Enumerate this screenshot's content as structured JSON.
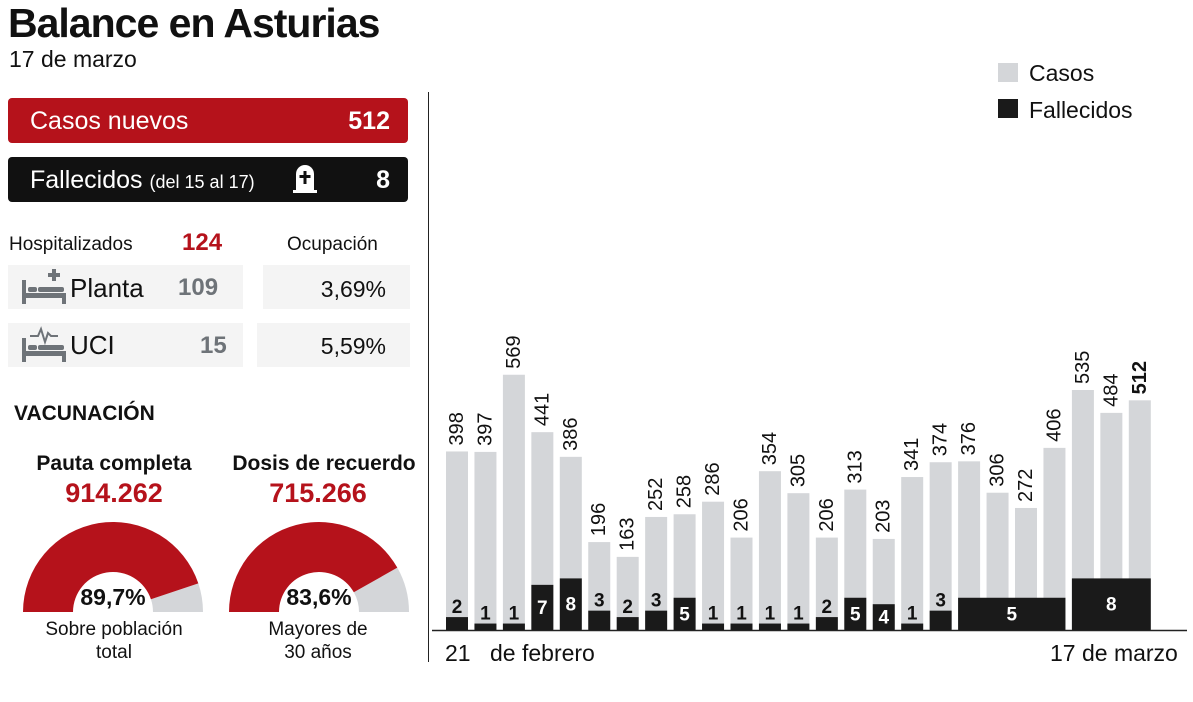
{
  "header": {
    "title": "Balance en Asturias",
    "date": "17 de marzo"
  },
  "summary": {
    "casos_label": "Casos nuevos",
    "casos_value": "512",
    "fallecidos_label": "Fallecidos",
    "fallecidos_note": "(del 15 al 17)",
    "fallecidos_value": "8"
  },
  "hospital": {
    "hospitalizados_label": "Hospitalizados",
    "hospitalizados_value": "124",
    "ocupacion_label": "Ocupación",
    "planta_label": "Planta",
    "planta_value": "109",
    "planta_pct": "3,69%",
    "uci_label": "UCI",
    "uci_value": "15",
    "uci_pct": "5,59%"
  },
  "vacunacion": {
    "title": "VACUNACIÓN",
    "gauges": [
      {
        "title": "Pauta completa",
        "value": "914.262",
        "pct_label": "89,7%",
        "pct": 89.7,
        "caption1": "Sobre población",
        "caption2": "total"
      },
      {
        "title": "Dosis de recuerdo",
        "value": "715.266",
        "pct_label": "83,6%",
        "pct": 83.6,
        "caption1": "Mayores de",
        "caption2": "30 años"
      }
    ]
  },
  "colors": {
    "red": "#b5121b",
    "casos_bar": "#d4d6d9",
    "fallecidos_bar": "#1a1a1a",
    "gauge_rest": "#d4d6d9"
  },
  "chart_data": {
    "type": "bar",
    "legend": [
      "Casos",
      "Fallecidos"
    ],
    "legend_position": "top-right",
    "x_start_label_day": "21",
    "x_start_label_month": "de febrero",
    "x_end_label": "17 de marzo",
    "casos": [
      398,
      397,
      569,
      441,
      386,
      196,
      163,
      252,
      258,
      286,
      206,
      354,
      305,
      206,
      313,
      203,
      341,
      374,
      376,
      306,
      272,
      406,
      535,
      484,
      512
    ],
    "fallecidos_groups": [
      {
        "from": 0,
        "to": 0,
        "value": 2
      },
      {
        "from": 1,
        "to": 1,
        "value": 1
      },
      {
        "from": 2,
        "to": 2,
        "value": 1
      },
      {
        "from": 3,
        "to": 3,
        "value": 7
      },
      {
        "from": 4,
        "to": 4,
        "value": 8
      },
      {
        "from": 5,
        "to": 5,
        "value": 3
      },
      {
        "from": 6,
        "to": 6,
        "value": 2
      },
      {
        "from": 7,
        "to": 7,
        "value": 3
      },
      {
        "from": 8,
        "to": 8,
        "value": 5
      },
      {
        "from": 9,
        "to": 9,
        "value": 1
      },
      {
        "from": 10,
        "to": 10,
        "value": 1
      },
      {
        "from": 11,
        "to": 11,
        "value": 1
      },
      {
        "from": 12,
        "to": 12,
        "value": 1
      },
      {
        "from": 13,
        "to": 13,
        "value": 2
      },
      {
        "from": 14,
        "to": 14,
        "value": 5
      },
      {
        "from": 15,
        "to": 15,
        "value": 4
      },
      {
        "from": 16,
        "to": 16,
        "value": 1
      },
      {
        "from": 17,
        "to": 17,
        "value": 3
      },
      {
        "from": 18,
        "to": 21,
        "value": 5
      },
      {
        "from": 22,
        "to": 24,
        "value": 8
      }
    ],
    "bold_last_label": true
  }
}
